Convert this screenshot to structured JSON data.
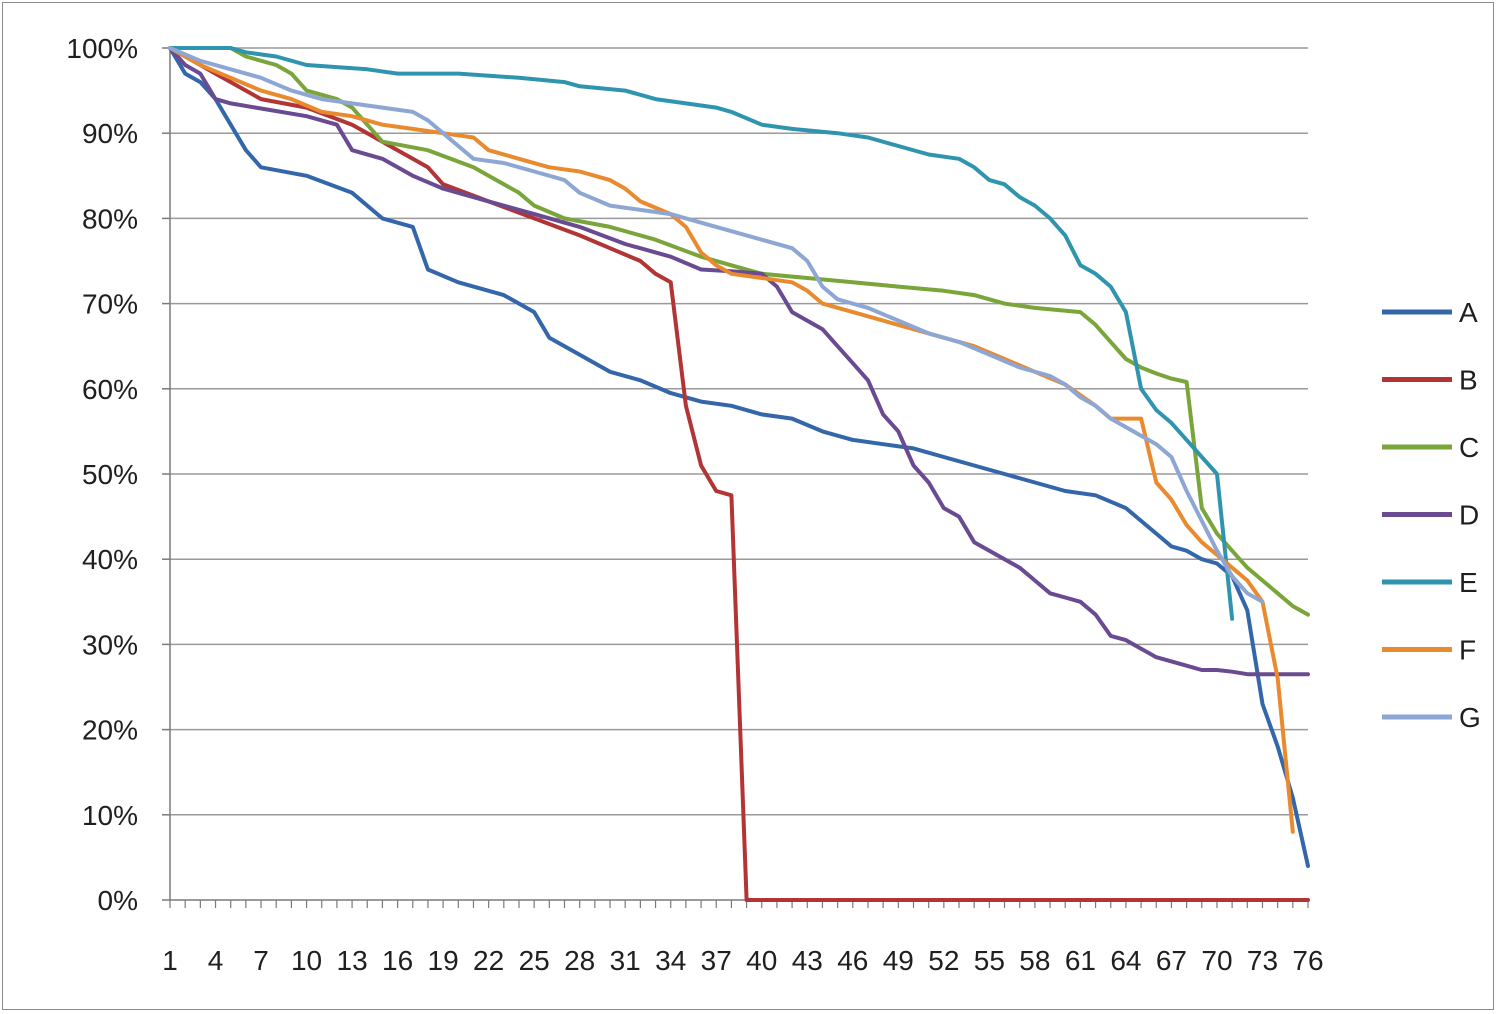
{
  "chart_data": {
    "type": "line",
    "ylim": [
      0,
      100
    ],
    "y_ticks": [
      "0%",
      "10%",
      "20%",
      "30%",
      "40%",
      "50%",
      "60%",
      "70%",
      "80%",
      "90%",
      "100%"
    ],
    "y_tick_values": [
      0,
      10,
      20,
      30,
      40,
      50,
      60,
      70,
      80,
      90,
      100
    ],
    "x_ticks": [
      "1",
      "4",
      "7",
      "10",
      "13",
      "16",
      "19",
      "22",
      "25",
      "28",
      "31",
      "34",
      "37",
      "40",
      "43",
      "46",
      "49",
      "52",
      "55",
      "58",
      "61",
      "64",
      "67",
      "70",
      "73",
      "76"
    ],
    "x_tick_values": [
      1,
      4,
      7,
      10,
      13,
      16,
      19,
      22,
      25,
      28,
      31,
      34,
      37,
      40,
      43,
      46,
      49,
      52,
      55,
      58,
      61,
      64,
      67,
      70,
      73,
      76
    ],
    "xlim": [
      1,
      76
    ],
    "grid": "horizontal",
    "legend_position": "right",
    "series": [
      {
        "name": "A",
        "color": "#3466aa",
        "points": [
          [
            1,
            100
          ],
          [
            2,
            97
          ],
          [
            3,
            96
          ],
          [
            4,
            94
          ],
          [
            5,
            91
          ],
          [
            6,
            88
          ],
          [
            7,
            86
          ],
          [
            10,
            85
          ],
          [
            13,
            83
          ],
          [
            15,
            80
          ],
          [
            17,
            79
          ],
          [
            18,
            74
          ],
          [
            20,
            72.5
          ],
          [
            23,
            71
          ],
          [
            25,
            69
          ],
          [
            26,
            66
          ],
          [
            28,
            64
          ],
          [
            30,
            62
          ],
          [
            32,
            61
          ],
          [
            34,
            59.5
          ],
          [
            36,
            58.5
          ],
          [
            38,
            58
          ],
          [
            40,
            57
          ],
          [
            42,
            56.5
          ],
          [
            44,
            55
          ],
          [
            46,
            54
          ],
          [
            48,
            53.5
          ],
          [
            50,
            53
          ],
          [
            52,
            52
          ],
          [
            54,
            51
          ],
          [
            56,
            50
          ],
          [
            58,
            49
          ],
          [
            60,
            48
          ],
          [
            62,
            47.5
          ],
          [
            64,
            46
          ],
          [
            65,
            44.5
          ],
          [
            66,
            43
          ],
          [
            67,
            41.5
          ],
          [
            68,
            41
          ],
          [
            69,
            40
          ],
          [
            70,
            39.5
          ],
          [
            71,
            38
          ],
          [
            72,
            34
          ],
          [
            73,
            23
          ],
          [
            74,
            18
          ],
          [
            75,
            12
          ],
          [
            76,
            4
          ]
        ]
      },
      {
        "name": "B",
        "color": "#b23434",
        "points": [
          [
            1,
            100
          ],
          [
            2,
            99
          ],
          [
            3,
            98
          ],
          [
            4,
            97
          ],
          [
            5,
            96
          ],
          [
            6,
            95
          ],
          [
            7,
            94
          ],
          [
            10,
            93
          ],
          [
            13,
            91
          ],
          [
            15,
            89
          ],
          [
            18,
            86
          ],
          [
            19,
            84
          ],
          [
            22,
            82
          ],
          [
            25,
            80
          ],
          [
            28,
            78
          ],
          [
            30,
            76.5
          ],
          [
            32,
            75
          ],
          [
            33,
            73.5
          ],
          [
            34,
            72.5
          ],
          [
            35,
            58
          ],
          [
            36,
            51
          ],
          [
            37,
            48
          ],
          [
            38,
            47.5
          ],
          [
            39,
            0
          ],
          [
            76,
            0
          ]
        ]
      },
      {
        "name": "C",
        "color": "#7aa53b",
        "points": [
          [
            1,
            100
          ],
          [
            4,
            100
          ],
          [
            5,
            100
          ],
          [
            6,
            99
          ],
          [
            8,
            98
          ],
          [
            9,
            97
          ],
          [
            10,
            95
          ],
          [
            12,
            94
          ],
          [
            13,
            93
          ],
          [
            14,
            91
          ],
          [
            15,
            89
          ],
          [
            18,
            88
          ],
          [
            21,
            86
          ],
          [
            24,
            83
          ],
          [
            25,
            81.5
          ],
          [
            27,
            80
          ],
          [
            30,
            79
          ],
          [
            33,
            77.5
          ],
          [
            36,
            75.5
          ],
          [
            38,
            74.5
          ],
          [
            40,
            73.5
          ],
          [
            43,
            73
          ],
          [
            46,
            72.5
          ],
          [
            49,
            72
          ],
          [
            52,
            71.5
          ],
          [
            54,
            71
          ],
          [
            56,
            70
          ],
          [
            58,
            69.5
          ],
          [
            61,
            69
          ],
          [
            62,
            67.5
          ],
          [
            63,
            65.5
          ],
          [
            64,
            63.5
          ],
          [
            65,
            62.5
          ],
          [
            66,
            61.8
          ],
          [
            67,
            61.2
          ],
          [
            68,
            60.8
          ],
          [
            69,
            46
          ],
          [
            70,
            43
          ],
          [
            71,
            41
          ],
          [
            72,
            39
          ],
          [
            73,
            37.5
          ],
          [
            74,
            36
          ],
          [
            75,
            34.5
          ],
          [
            76,
            33.5
          ]
        ]
      },
      {
        "name": "D",
        "color": "#6a4a90",
        "points": [
          [
            1,
            100
          ],
          [
            2,
            98
          ],
          [
            3,
            97
          ],
          [
            4,
            94
          ],
          [
            5,
            93.5
          ],
          [
            10,
            92
          ],
          [
            12,
            91
          ],
          [
            13,
            88
          ],
          [
            15,
            87
          ],
          [
            17,
            85
          ],
          [
            19,
            83.5
          ],
          [
            22,
            82
          ],
          [
            25,
            80.5
          ],
          [
            28,
            79
          ],
          [
            31,
            77
          ],
          [
            34,
            75.5
          ],
          [
            36,
            74
          ],
          [
            38,
            73.8
          ],
          [
            40,
            73.5
          ],
          [
            41,
            72
          ],
          [
            42,
            69
          ],
          [
            44,
            67
          ],
          [
            45,
            65
          ],
          [
            46,
            63
          ],
          [
            47,
            61
          ],
          [
            48,
            57
          ],
          [
            49,
            55
          ],
          [
            50,
            51
          ],
          [
            51,
            49
          ],
          [
            52,
            46
          ],
          [
            53,
            45
          ],
          [
            54,
            42
          ],
          [
            56,
            40
          ],
          [
            57,
            39
          ],
          [
            58,
            37.5
          ],
          [
            59,
            36
          ],
          [
            60,
            35.5
          ],
          [
            61,
            35
          ],
          [
            62,
            33.5
          ],
          [
            63,
            31
          ],
          [
            64,
            30.5
          ],
          [
            65,
            29.5
          ],
          [
            66,
            28.5
          ],
          [
            67,
            28
          ],
          [
            68,
            27.5
          ],
          [
            69,
            27
          ],
          [
            70,
            27
          ],
          [
            71,
            26.8
          ],
          [
            72,
            26.5
          ],
          [
            76,
            26.5
          ]
        ]
      },
      {
        "name": "E",
        "color": "#2f95ae",
        "points": [
          [
            1,
            100
          ],
          [
            5,
            100
          ],
          [
            6,
            99.5
          ],
          [
            8,
            99
          ],
          [
            10,
            98
          ],
          [
            14,
            97.5
          ],
          [
            16,
            97
          ],
          [
            20,
            97
          ],
          [
            24,
            96.5
          ],
          [
            27,
            96
          ],
          [
            28,
            95.5
          ],
          [
            31,
            95
          ],
          [
            33,
            94
          ],
          [
            35,
            93.5
          ],
          [
            37,
            93
          ],
          [
            38,
            92.5
          ],
          [
            40,
            91
          ],
          [
            42,
            90.5
          ],
          [
            45,
            90
          ],
          [
            47,
            89.5
          ],
          [
            49,
            88.5
          ],
          [
            51,
            87.5
          ],
          [
            53,
            87
          ],
          [
            54,
            86
          ],
          [
            55,
            84.5
          ],
          [
            56,
            84
          ],
          [
            57,
            82.5
          ],
          [
            58,
            81.5
          ],
          [
            59,
            80
          ],
          [
            60,
            78
          ],
          [
            61,
            74.5
          ],
          [
            62,
            73.5
          ],
          [
            63,
            72
          ],
          [
            64,
            69
          ],
          [
            65,
            60
          ],
          [
            66,
            57.5
          ],
          [
            67,
            56
          ],
          [
            68,
            54
          ],
          [
            69,
            52
          ],
          [
            70,
            50
          ],
          [
            71,
            33
          ]
        ]
      },
      {
        "name": "F",
        "color": "#ea8a2e",
        "points": [
          [
            1,
            100
          ],
          [
            3,
            98
          ],
          [
            5,
            96.5
          ],
          [
            7,
            95
          ],
          [
            9,
            94
          ],
          [
            11,
            92.5
          ],
          [
            13,
            92
          ],
          [
            15,
            91
          ],
          [
            17,
            90.5
          ],
          [
            19,
            90
          ],
          [
            21,
            89.5
          ],
          [
            22,
            88
          ],
          [
            24,
            87
          ],
          [
            26,
            86
          ],
          [
            28,
            85.5
          ],
          [
            30,
            84.5
          ],
          [
            31,
            83.5
          ],
          [
            32,
            82
          ],
          [
            34,
            80.5
          ],
          [
            35,
            79
          ],
          [
            36,
            76
          ],
          [
            37,
            74.5
          ],
          [
            38,
            73.5
          ],
          [
            40,
            73
          ],
          [
            42,
            72.5
          ],
          [
            43,
            71.5
          ],
          [
            44,
            70
          ],
          [
            46,
            69
          ],
          [
            48,
            68
          ],
          [
            50,
            67
          ],
          [
            52,
            66
          ],
          [
            54,
            65
          ],
          [
            56,
            63.5
          ],
          [
            58,
            62
          ],
          [
            60,
            60.5
          ],
          [
            62,
            58
          ],
          [
            63,
            56.5
          ],
          [
            65,
            56.5
          ],
          [
            66,
            49
          ],
          [
            67,
            47
          ],
          [
            68,
            44
          ],
          [
            69,
            42
          ],
          [
            70,
            40.5
          ],
          [
            71,
            39
          ],
          [
            72,
            37.5
          ],
          [
            73,
            35
          ],
          [
            74,
            26
          ],
          [
            75,
            8
          ]
        ]
      },
      {
        "name": "G",
        "color": "#8ea6d4",
        "points": [
          [
            1,
            100
          ],
          [
            3,
            98.5
          ],
          [
            5,
            97.5
          ],
          [
            7,
            96.5
          ],
          [
            9,
            95
          ],
          [
            11,
            94
          ],
          [
            13,
            93.5
          ],
          [
            15,
            93
          ],
          [
            17,
            92.5
          ],
          [
            18,
            91.5
          ],
          [
            19,
            90
          ],
          [
            20,
            88.5
          ],
          [
            21,
            87
          ],
          [
            23,
            86.5
          ],
          [
            25,
            85.5
          ],
          [
            27,
            84.5
          ],
          [
            28,
            83
          ],
          [
            30,
            81.5
          ],
          [
            32,
            81
          ],
          [
            34,
            80.5
          ],
          [
            36,
            79.5
          ],
          [
            38,
            78.5
          ],
          [
            40,
            77.5
          ],
          [
            42,
            76.5
          ],
          [
            43,
            75
          ],
          [
            44,
            72
          ],
          [
            45,
            70.5
          ],
          [
            47,
            69.5
          ],
          [
            49,
            68
          ],
          [
            51,
            66.5
          ],
          [
            53,
            65.5
          ],
          [
            55,
            64
          ],
          [
            57,
            62.5
          ],
          [
            59,
            61.5
          ],
          [
            60,
            60.5
          ],
          [
            61,
            59
          ],
          [
            62,
            58
          ],
          [
            63,
            56.5
          ],
          [
            64,
            55.5
          ],
          [
            65,
            54.5
          ],
          [
            66,
            53.5
          ],
          [
            67,
            52
          ],
          [
            68,
            48
          ],
          [
            69,
            44.5
          ],
          [
            70,
            41
          ],
          [
            71,
            38
          ],
          [
            72,
            36
          ],
          [
            73,
            35
          ]
        ]
      }
    ]
  }
}
